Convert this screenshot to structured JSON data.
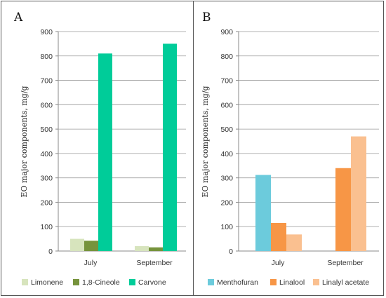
{
  "chart_data": [
    {
      "type": "bar",
      "panel": "A",
      "categories": [
        "July",
        "September"
      ],
      "series": [
        {
          "name": "Limonene",
          "values": [
            50,
            20
          ],
          "color": "#d7e4bd"
        },
        {
          "name": "1,8-Cineole",
          "values": [
            42,
            15
          ],
          "color": "#76933c"
        },
        {
          "name": "Carvone",
          "values": [
            810,
            850
          ],
          "color": "#00cc99"
        }
      ],
      "ylabel": "EO major components, mg/g",
      "ylim": [
        0,
        900
      ],
      "yticks": [
        0,
        100,
        200,
        300,
        400,
        500,
        600,
        700,
        800,
        900
      ],
      "grid": true,
      "legend": "bottom"
    },
    {
      "type": "bar",
      "panel": "B",
      "categories": [
        "July",
        "September"
      ],
      "series": [
        {
          "name": "Menthofuran",
          "values": [
            312,
            null
          ],
          "color": "#6ccbdc"
        },
        {
          "name": "Linalool",
          "values": [
            115,
            340
          ],
          "color": "#f79646"
        },
        {
          "name": "Linalyl acetate",
          "values": [
            68,
            470
          ],
          "color": "#fac090"
        }
      ],
      "ylabel": "EO major components, mg/g",
      "ylim": [
        0,
        900
      ],
      "yticks": [
        0,
        100,
        200,
        300,
        400,
        500,
        600,
        700,
        800,
        900
      ],
      "grid": true,
      "legend": "bottom"
    }
  ]
}
